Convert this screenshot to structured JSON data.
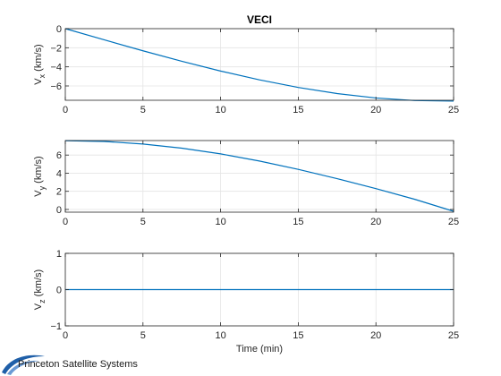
{
  "chart_data": [
    {
      "type": "line",
      "title": "VECI",
      "xlabel": "",
      "ylabel_main": "V",
      "ylabel_sub": "x",
      "ylabel_unit": " (km/s)",
      "xlim": [
        0,
        25
      ],
      "ylim": [
        -7.5,
        0
      ],
      "xticks": [
        0,
        5,
        10,
        15,
        20,
        25
      ],
      "yticks": [
        0,
        -2,
        -4,
        -6
      ],
      "grid": true,
      "series": [
        {
          "color": "#0072bd",
          "x": [
            0,
            2.5,
            5,
            7.5,
            10,
            12.5,
            15,
            17.5,
            20,
            22.5,
            25
          ],
          "y": [
            0,
            -1.17,
            -2.32,
            -3.42,
            -4.44,
            -5.36,
            -6.16,
            -6.8,
            -7.26,
            -7.53,
            -7.59
          ]
        }
      ]
    },
    {
      "type": "line",
      "title": "",
      "xlabel": "",
      "ylabel_main": "V",
      "ylabel_sub": "y",
      "ylabel_unit": " (km/s)",
      "xlim": [
        0,
        25
      ],
      "ylim": [
        -0.3,
        7.6
      ],
      "xticks": [
        0,
        5,
        10,
        15,
        20,
        25
      ],
      "yticks": [
        0,
        2,
        4,
        6
      ],
      "grid": true,
      "series": [
        {
          "color": "#0072bd",
          "x": [
            0,
            2.5,
            5,
            7.5,
            10,
            12.5,
            15,
            17.5,
            20,
            22.5,
            25
          ],
          "y": [
            7.59,
            7.5,
            7.22,
            6.76,
            6.13,
            5.34,
            4.42,
            3.4,
            2.3,
            1.12,
            -0.2
          ]
        }
      ]
    },
    {
      "type": "line",
      "title": "",
      "xlabel": "Time (min)",
      "ylabel_main": "V",
      "ylabel_sub": "z",
      "ylabel_unit": " (km/s)",
      "xlim": [
        0,
        25
      ],
      "ylim": [
        -1,
        1
      ],
      "xticks": [
        0,
        5,
        10,
        15,
        20,
        25
      ],
      "yticks": [
        1,
        0,
        -1
      ],
      "grid": true,
      "series": [
        {
          "color": "#0072bd",
          "x": [
            0,
            25
          ],
          "y": [
            0,
            0
          ]
        }
      ]
    }
  ],
  "logo": {
    "text": "Princeton Satellite Systems",
    "color": "#1f5fa8"
  }
}
